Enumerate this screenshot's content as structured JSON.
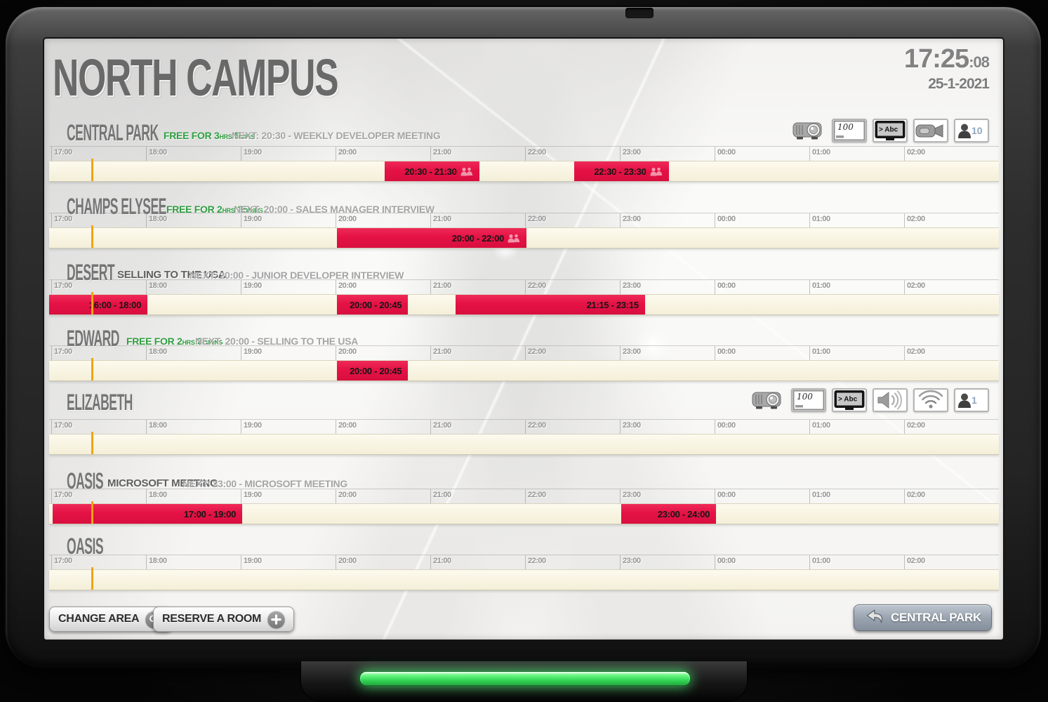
{
  "header": {
    "title": "NORTH CAMPUS",
    "clock": {
      "time": "17:25",
      "seconds": ":08",
      "date": "25-1-2021"
    }
  },
  "timeline": {
    "hours": [
      "17:00",
      "18:00",
      "19:00",
      "20:00",
      "21:00",
      "22:00",
      "23:00",
      "00:00",
      "01:00",
      "02:00"
    ],
    "current_time": "17:25"
  },
  "rooms": [
    {
      "name": "CENTRAL PARK",
      "status": {
        "type": "free",
        "prefix": "FREE FOR",
        "hours": "3",
        "hours_unit": "HRS",
        "mins": "5",
        "mins_unit": "MINS"
      },
      "next": "NEXT: 20:30 - WEEKLY DEVELOPER MEETING",
      "amenities": [
        {
          "icon": "projector-icon"
        },
        {
          "icon": "whiteboard-icon",
          "label": "100"
        },
        {
          "icon": "display-icon",
          "label": "> Abc"
        },
        {
          "icon": "video-camera-icon"
        },
        {
          "icon": "capacity-icon",
          "label": "10"
        }
      ],
      "bookings": [
        {
          "label": "20:30 - 21:30",
          "start": "20:30",
          "end": "21:30",
          "attendees_icon": true
        },
        {
          "label": "22:30 - 23:30",
          "start": "22:30",
          "end": "23:30",
          "attendees_icon": true
        }
      ]
    },
    {
      "name": "CHAMPS ELYSEE",
      "status": {
        "type": "free",
        "prefix": "FREE FOR",
        "hours": "2",
        "hours_unit": "HRS",
        "mins": "35",
        "mins_unit": "MINS"
      },
      "next": "NEXT: 20:00 - SALES MANAGER INTERVIEW",
      "amenities": [],
      "bookings": [
        {
          "label": "20:00 - 22:00",
          "start": "20:00",
          "end": "22:00",
          "attendees_icon": true
        }
      ]
    },
    {
      "name": "DESERT",
      "status": {
        "type": "busy",
        "meeting": "SELLING TO THE USA"
      },
      "next": "NEXT: 20:00 - JUNIOR DEVELOPER INTERVIEW",
      "amenities": [],
      "bookings": [
        {
          "label": "16:00 - 18:00",
          "start": "16:00",
          "end": "18:00",
          "attendees_icon": false
        },
        {
          "label": "20:00 - 20:45",
          "start": "20:00",
          "end": "20:45",
          "attendees_icon": false
        },
        {
          "label": "21:15 - 23:15",
          "start": "21:15",
          "end": "23:15",
          "attendees_icon": false
        }
      ]
    },
    {
      "name": "EDWARD",
      "status": {
        "type": "free",
        "prefix": "FREE FOR",
        "hours": "2",
        "hours_unit": "HRS",
        "mins": "35",
        "mins_unit": "MINS"
      },
      "next": "NEXT: 20:00 - SELLING TO THE USA",
      "amenities": [],
      "bookings": [
        {
          "label": "20:00 - 20:45",
          "start": "20:00",
          "end": "20:45",
          "attendees_icon": false
        }
      ]
    },
    {
      "name": "ELIZABETH",
      "status": null,
      "next": "",
      "amenities": [
        {
          "icon": "projector-icon"
        },
        {
          "icon": "whiteboard-icon",
          "label": "100"
        },
        {
          "icon": "display-icon",
          "label": "> Abc"
        },
        {
          "icon": "speaker-icon"
        },
        {
          "icon": "wifi-icon"
        },
        {
          "icon": "capacity-icon",
          "label": "1"
        }
      ],
      "bookings": []
    },
    {
      "name": "OASIS",
      "status": {
        "type": "busy",
        "meeting": "MICROSOFT MEETING"
      },
      "next": "NEXT: 23:00 - MICROSOFT MEETING",
      "amenities": [],
      "bookings": [
        {
          "label": "17:00 - 19:00",
          "start": "17:00",
          "end": "19:00",
          "attendees_icon": false
        },
        {
          "label": "23:00 - 24:00",
          "start": "23:00",
          "end": "24:00",
          "attendees_icon": false
        }
      ]
    },
    {
      "name": "OASIS",
      "status": null,
      "next": "",
      "amenities": [],
      "bookings": []
    }
  ],
  "footer": {
    "change_area_label": "CHANGE AREA",
    "reserve_label": "RESERVE A ROOM",
    "back_label": "CENTRAL PARK"
  },
  "colors": {
    "booking_red": "#e51245",
    "free_green": "#2f9e40",
    "current_time_orange": "#f0a50b",
    "led_green": "#36da58"
  }
}
